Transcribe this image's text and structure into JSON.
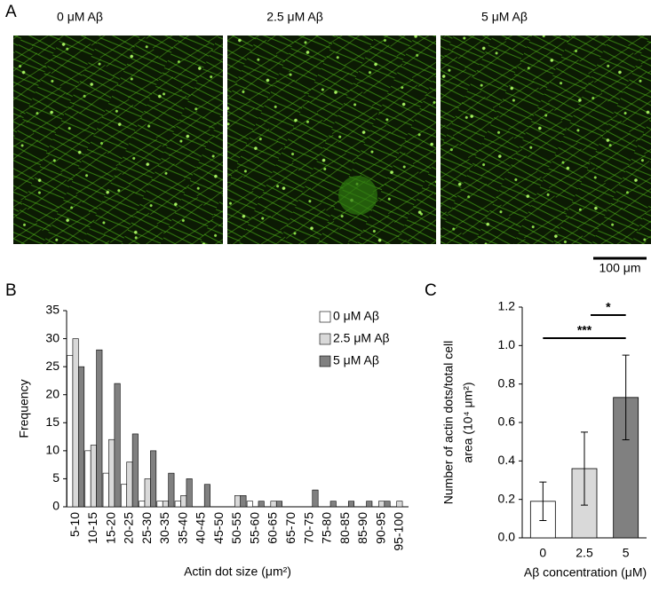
{
  "panel_a": {
    "label": "A",
    "images": [
      "0 μM Aβ",
      "2.5 μM Aβ",
      "5 μM Aβ"
    ],
    "scale_bar": "100 μm"
  },
  "chart_data": [
    {
      "type": "grouped-bar",
      "panel_label": "B",
      "y_label": "Frequency",
      "x_label": "Actin dot size (μm²)",
      "categories": [
        "5-10",
        "10-15",
        "15-20",
        "20-25",
        "25-30",
        "30-35",
        "35-40",
        "40-45",
        "45-50",
        "50-55",
        "55-60",
        "60-65",
        "65-70",
        "70-75",
        "75-80",
        "80-85",
        "85-90",
        "90-95",
        "95-100"
      ],
      "series": [
        {
          "name": "0 μM Aβ",
          "color": "#ffffff",
          "values": [
            27,
            10,
            6,
            4,
            1,
            1,
            1,
            0,
            0,
            0,
            1,
            0,
            0,
            0,
            0,
            0,
            0,
            0,
            0
          ]
        },
        {
          "name": "2.5 μM Aβ",
          "color": "#d9d9d9",
          "values": [
            30,
            11,
            12,
            8,
            5,
            1,
            2,
            0,
            0,
            2,
            0,
            1,
            0,
            0,
            0,
            0,
            0,
            1,
            1
          ]
        },
        {
          "name": "5 μM Aβ",
          "color": "#808080",
          "values": [
            25,
            28,
            22,
            13,
            10,
            6,
            5,
            4,
            0,
            2,
            1,
            1,
            0,
            3,
            1,
            1,
            1,
            1,
            0
          ]
        }
      ],
      "ylim": [
        0,
        35
      ],
      "yticks": [
        0,
        5,
        10,
        15,
        20,
        25,
        30,
        35
      ],
      "legend": "top-right"
    },
    {
      "type": "errorbar-bar",
      "panel_label": "C",
      "y_label": [
        "Number of actin dots/total cell",
        "area (10⁴ μm²)"
      ],
      "x_label": "Aβ concentration (μM)",
      "categories": [
        "0",
        "2.5",
        "5"
      ],
      "values": [
        0.19,
        0.36,
        0.73
      ],
      "errors": [
        0.1,
        0.19,
        0.22
      ],
      "colors": [
        "#ffffff",
        "#d9d9d9",
        "#808080"
      ],
      "ylim": [
        0,
        1.2
      ],
      "yticks": [
        {
          "value": 0,
          "label": "0.0"
        },
        0.2,
        0.4,
        0.6,
        0.8,
        {
          "value": 1,
          "label": "1.0"
        },
        1.2
      ],
      "annotations": [
        "*",
        "***"
      ]
    }
  ]
}
